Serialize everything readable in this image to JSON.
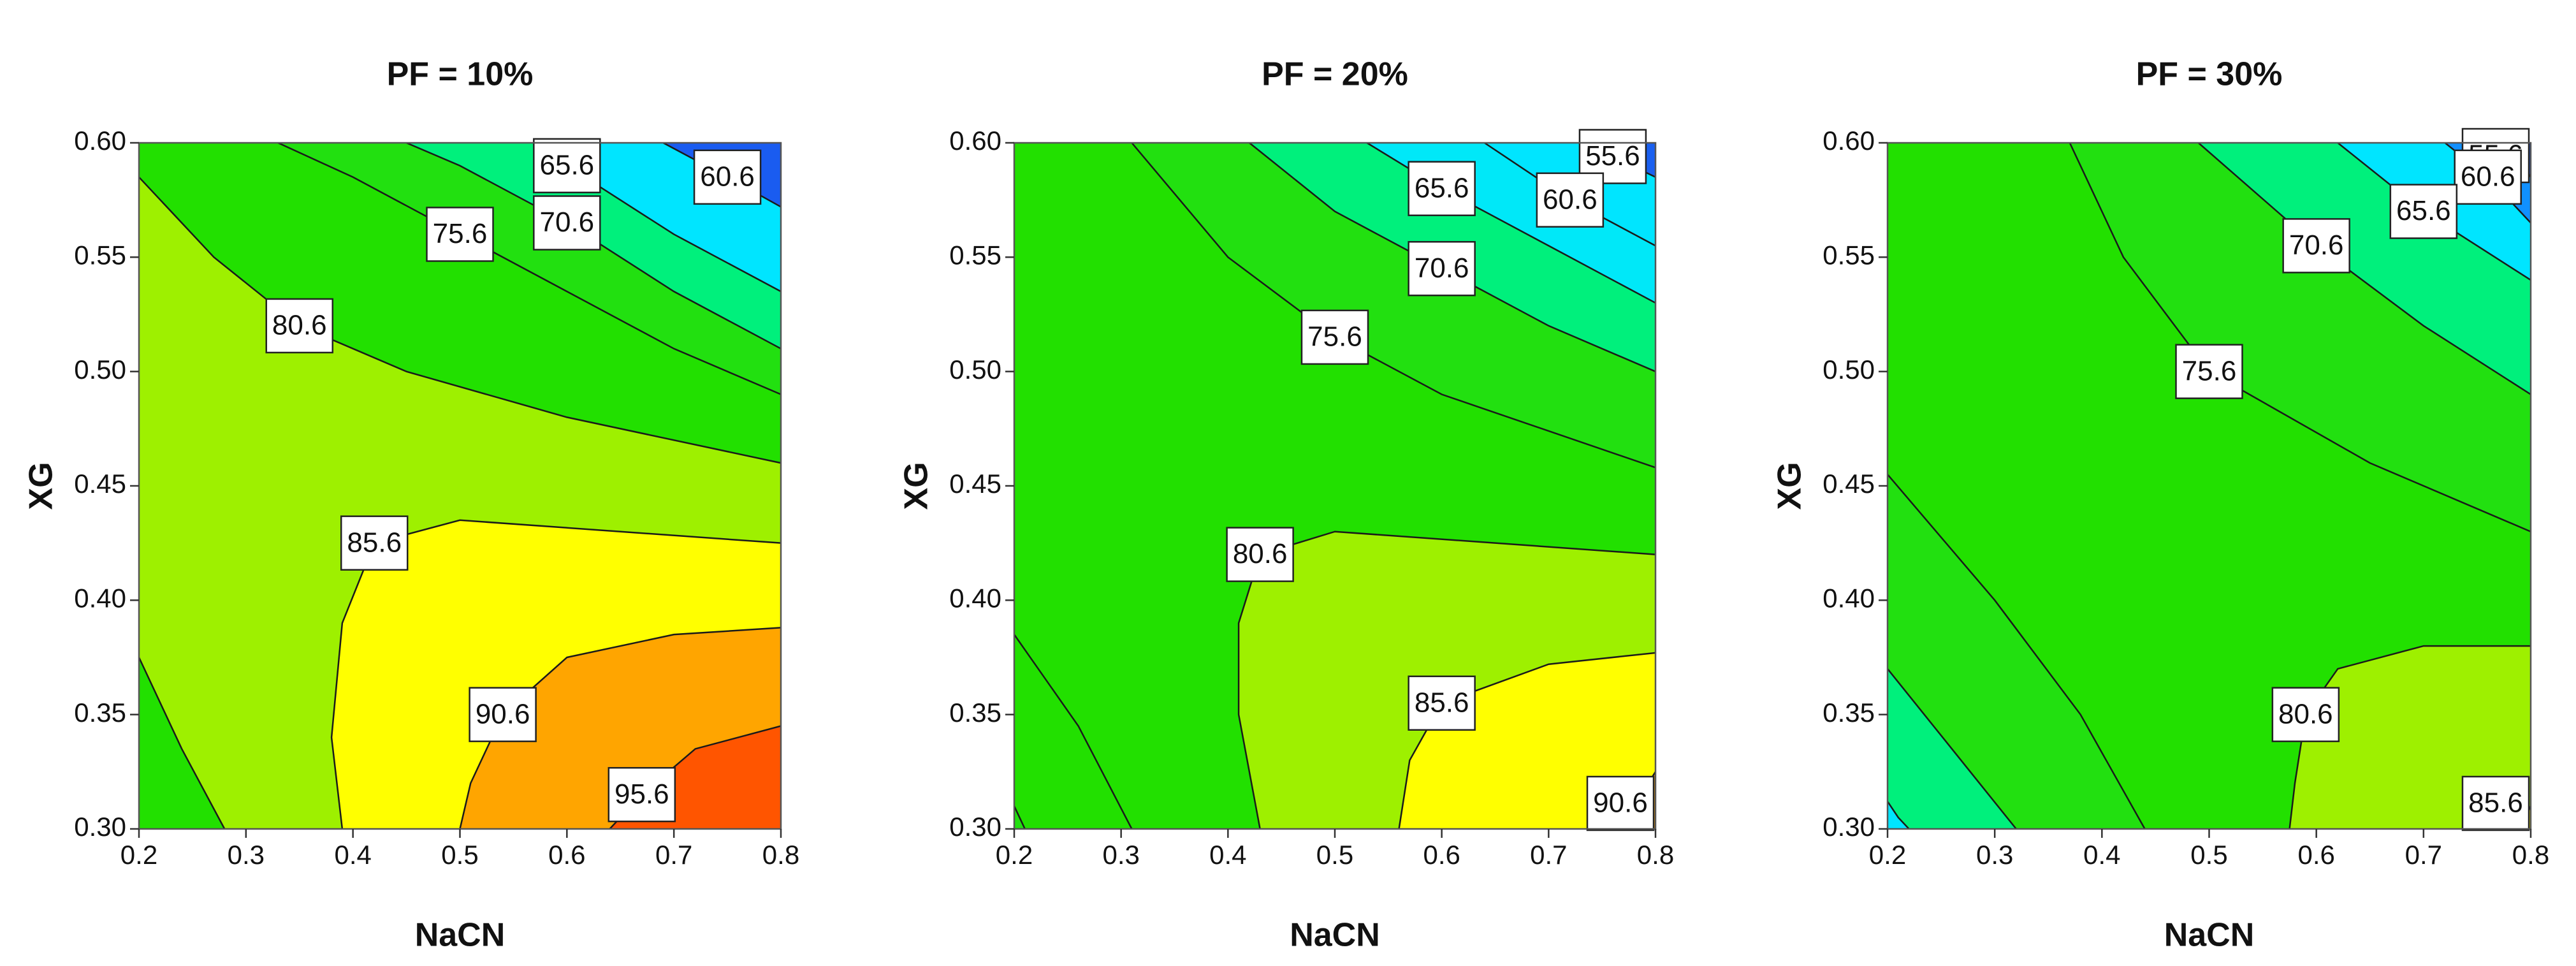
{
  "chart_data": [
    {
      "type": "contour",
      "title": "PF = 10%",
      "xlabel": "NaCN",
      "ylabel": "XG",
      "xlim": [
        0.2,
        0.8
      ],
      "ylim": [
        0.3,
        0.6
      ],
      "xticks": [
        0.2,
        0.3,
        0.4,
        0.5,
        0.6,
        0.7,
        0.8
      ],
      "yticks": [
        {
          "value": 0.3,
          "label": "0.30"
        },
        {
          "value": 0.35,
          "label": "0.35"
        },
        {
          "value": 0.4,
          "label": "0.40"
        },
        {
          "value": 0.45,
          "label": "0.45"
        },
        {
          "value": 0.5,
          "label": "0.50"
        },
        {
          "value": 0.55,
          "label": "0.55"
        },
        {
          "value": 0.6,
          "label": "0.60"
        }
      ],
      "colors": [
        "#1a5cf0",
        "#00e5ff",
        "#00f07c",
        "#22e010",
        "#22e000",
        "#9ef000",
        "#ffff00",
        "#ffa500",
        "#ff5500"
      ],
      "contours": [
        {
          "level": 60.6,
          "x": [
            0.8,
            0.75,
            0.69
          ],
          "y": [
            0.572,
            0.585,
            0.6
          ]
        },
        {
          "level": 65.6,
          "x": [
            0.8,
            0.7,
            0.6,
            0.57
          ],
          "y": [
            0.535,
            0.56,
            0.59,
            0.6
          ]
        },
        {
          "level": 70.6,
          "x": [
            0.8,
            0.7,
            0.6,
            0.5,
            0.45
          ],
          "y": [
            0.51,
            0.535,
            0.565,
            0.59,
            0.6
          ]
        },
        {
          "level": 75.6,
          "x": [
            0.8,
            0.7,
            0.6,
            0.5,
            0.4,
            0.33
          ],
          "y": [
            0.49,
            0.51,
            0.535,
            0.56,
            0.585,
            0.6
          ]
        },
        {
          "level": 80.6,
          "x": [
            0.8,
            0.6,
            0.45,
            0.35,
            0.27,
            0.2,
            null,
            0.2,
            0.24,
            0.28
          ],
          "y": [
            0.46,
            0.48,
            0.5,
            0.52,
            0.55,
            0.585,
            null,
            0.375,
            0.335,
            0.3
          ]
        },
        {
          "level": 85.6,
          "x": [
            0.8,
            0.65,
            0.5,
            0.42,
            0.39,
            0.38,
            0.39
          ],
          "y": [
            0.425,
            0.43,
            0.435,
            0.425,
            0.39,
            0.34,
            0.3
          ]
        },
        {
          "level": 90.6,
          "x": [
            0.8,
            0.7,
            0.6,
            0.54,
            0.51,
            0.5
          ],
          "y": [
            0.388,
            0.385,
            0.375,
            0.35,
            0.32,
            0.3
          ]
        },
        {
          "level": 95.6,
          "x": [
            0.8,
            0.72,
            0.67,
            0.64
          ],
          "y": [
            0.345,
            0.335,
            0.315,
            0.3
          ]
        }
      ]
    },
    {
      "type": "contour",
      "title": "PF = 20%",
      "xlabel": "NaCN",
      "ylabel": "XG",
      "xlim": [
        0.2,
        0.8
      ],
      "ylim": [
        0.3,
        0.6
      ],
      "xticks": [
        0.2,
        0.3,
        0.4,
        0.5,
        0.6,
        0.7,
        0.8
      ],
      "yticks": [
        {
          "value": 0.3,
          "label": "0.30"
        },
        {
          "value": 0.35,
          "label": "0.35"
        },
        {
          "value": 0.4,
          "label": "0.40"
        },
        {
          "value": 0.45,
          "label": "0.45"
        },
        {
          "value": 0.5,
          "label": "0.50"
        },
        {
          "value": 0.55,
          "label": "0.55"
        },
        {
          "value": 0.6,
          "label": "0.60"
        }
      ],
      "colors": [
        "#1a60f0",
        "#00e5ff",
        "#00e8f8",
        "#00f07c",
        "#22e010",
        "#22e000",
        "#9ef000",
        "#ffff00",
        "#ffa500"
      ],
      "contours": [
        {
          "level": 55.6,
          "x": [
            0.8,
            0.76,
            0.73
          ],
          "y": [
            0.585,
            0.594,
            0.6
          ]
        },
        {
          "level": 60.6,
          "x": [
            0.8,
            0.72,
            0.64
          ],
          "y": [
            0.555,
            0.575,
            0.6
          ]
        },
        {
          "level": 65.6,
          "x": [
            0.8,
            0.7,
            0.6,
            0.53
          ],
          "y": [
            0.53,
            0.555,
            0.58,
            0.6
          ]
        },
        {
          "level": 70.6,
          "x": [
            0.8,
            0.7,
            0.6,
            0.5,
            0.42
          ],
          "y": [
            0.5,
            0.52,
            0.545,
            0.57,
            0.6
          ]
        },
        {
          "level": 75.6,
          "x": [
            0.8,
            0.6,
            0.5,
            0.4,
            0.31,
            null,
            0.2,
            0.205,
            0.21
          ],
          "y": [
            0.458,
            0.49,
            0.515,
            0.55,
            0.6,
            null,
            0.31,
            0.305,
            0.3
          ]
        },
        {
          "level": 80.6,
          "x": [
            0.8,
            0.65,
            0.5,
            0.43,
            0.41,
            0.41,
            0.43,
            null,
            0.2,
            0.26,
            0.31
          ],
          "y": [
            0.42,
            0.425,
            0.43,
            0.42,
            0.39,
            0.35,
            0.3,
            null,
            0.385,
            0.345,
            0.3
          ]
        },
        {
          "level": 85.6,
          "x": [
            0.8,
            0.7,
            0.6,
            0.57,
            0.56
          ],
          "y": [
            0.377,
            0.372,
            0.355,
            0.33,
            0.3
          ]
        },
        {
          "level": 90.6,
          "x": [
            0.8,
            0.78,
            0.77
          ],
          "y": [
            0.325,
            0.31,
            0.3
          ]
        }
      ]
    },
    {
      "type": "contour",
      "title": "PF = 30%",
      "xlabel": "NaCN",
      "ylabel": "XG",
      "xlim": [
        0.2,
        0.8
      ],
      "ylim": [
        0.3,
        0.6
      ],
      "xticks": [
        0.2,
        0.3,
        0.4,
        0.5,
        0.6,
        0.7,
        0.8
      ],
      "yticks": [
        {
          "value": 0.3,
          "label": "0.30"
        },
        {
          "value": 0.35,
          "label": "0.35"
        },
        {
          "value": 0.4,
          "label": "0.40"
        },
        {
          "value": 0.45,
          "label": "0.45"
        },
        {
          "value": 0.5,
          "label": "0.50"
        },
        {
          "value": 0.55,
          "label": "0.55"
        },
        {
          "value": 0.6,
          "label": "0.60"
        }
      ],
      "colors": [
        "#1a50e8",
        "#1090ff",
        "#00e5ff",
        "#00f07c",
        "#22e010",
        "#22e000",
        "#9ef000",
        "#ffff00"
      ],
      "contours": [
        {
          "level": 55.6,
          "x": [
            0.8,
            0.78
          ],
          "y": [
            0.585,
            0.6
          ]
        },
        {
          "level": 60.6,
          "x": [
            0.8,
            0.76,
            0.72
          ],
          "y": [
            0.565,
            0.585,
            0.6
          ]
        },
        {
          "level": 65.6,
          "x": [
            0.8,
            0.7,
            0.62,
            null,
            0.2,
            0.21,
            0.22
          ],
          "y": [
            0.54,
            0.57,
            0.6,
            null,
            0.312,
            0.305,
            0.3
          ]
        },
        {
          "level": 70.6,
          "x": [
            0.8,
            0.7,
            0.6,
            0.49,
            null,
            0.2,
            0.26,
            0.32
          ],
          "y": [
            0.49,
            0.52,
            0.555,
            0.6,
            null,
            0.37,
            0.335,
            0.3
          ]
        },
        {
          "level": 75.6,
          "x": [
            0.8,
            0.65,
            0.5,
            0.42,
            0.37,
            null,
            0.2,
            0.3,
            0.38,
            0.44
          ],
          "y": [
            0.43,
            0.46,
            0.5,
            0.55,
            0.6,
            null,
            0.455,
            0.4,
            0.35,
            0.3
          ]
        },
        {
          "level": 80.6,
          "x": [
            0.8,
            0.7,
            0.62,
            0.59,
            0.58,
            0.575
          ],
          "y": [
            0.38,
            0.38,
            0.37,
            0.35,
            0.32,
            0.3
          ]
        },
        {
          "level": 85.6,
          "x": [
            0.8,
            0.79
          ],
          "y": [
            0.31,
            0.3
          ]
        }
      ]
    }
  ]
}
